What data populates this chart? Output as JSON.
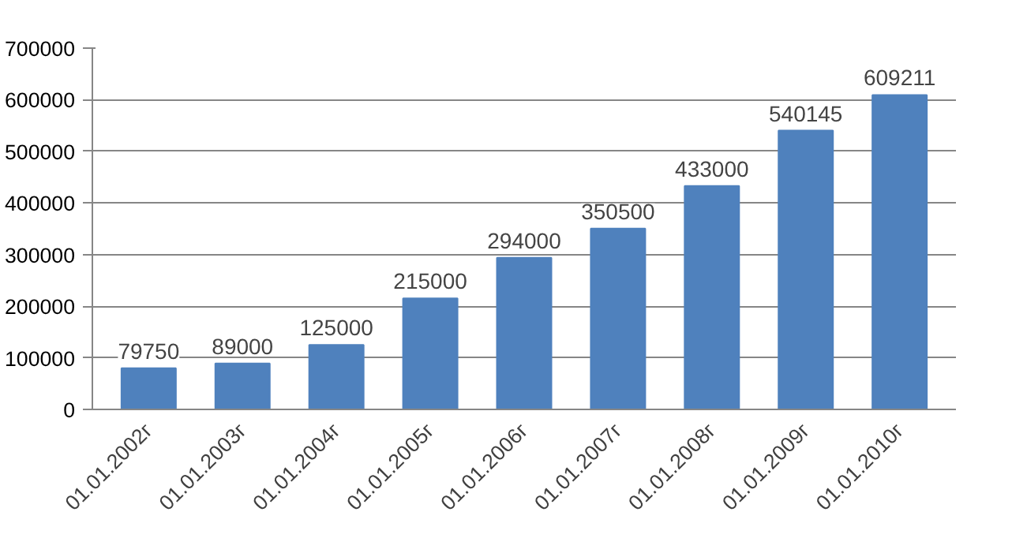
{
  "chart_data": {
    "type": "bar",
    "categories": [
      "01.01.2002г",
      "01.01.2003г",
      "01.01.2004г",
      "01.01.2005г",
      "01.01.2006г",
      "01.01.2007г",
      "01.01.2008г",
      "01.01.2009г",
      "01.01.2010г"
    ],
    "values": [
      79750,
      89000,
      125000,
      215000,
      294000,
      350500,
      433000,
      540145,
      609211
    ],
    "color": "#4f81bd",
    "ylim": [
      0,
      700000
    ],
    "yticks": [
      0,
      100000,
      200000,
      300000,
      400000,
      500000,
      600000,
      700000
    ],
    "grid": "y",
    "data_labels": true
  }
}
